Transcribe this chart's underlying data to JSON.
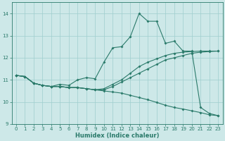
{
  "xlabel": "Humidex (Indice chaleur)",
  "bg_color": "#cde8e8",
  "grid_color": "#9ecece",
  "line_color": "#2a7a6a",
  "xlim": [
    -0.5,
    23.5
  ],
  "ylim": [
    9,
    14.5
  ],
  "yticks": [
    9,
    10,
    11,
    12,
    13,
    14
  ],
  "xticks": [
    0,
    1,
    2,
    3,
    4,
    5,
    6,
    7,
    8,
    9,
    10,
    11,
    12,
    13,
    14,
    15,
    16,
    17,
    18,
    19,
    20,
    21,
    22,
    23
  ],
  "s1_x": [
    0,
    1,
    2,
    3,
    4,
    5,
    6,
    7,
    8,
    9,
    10,
    11,
    12,
    13,
    14,
    15,
    16,
    17,
    18,
    19,
    20,
    21,
    22,
    23
  ],
  "s1_y": [
    11.2,
    11.15,
    10.85,
    10.75,
    10.7,
    10.7,
    10.65,
    10.65,
    10.6,
    10.55,
    10.5,
    10.45,
    10.4,
    10.3,
    10.2,
    10.1,
    9.98,
    9.85,
    9.75,
    9.68,
    9.6,
    9.52,
    9.42,
    9.38
  ],
  "s2_x": [
    0,
    1,
    2,
    3,
    4,
    5,
    6,
    7,
    8,
    9,
    10,
    11,
    12,
    13,
    14,
    15,
    16,
    17,
    18,
    19,
    20,
    21,
    22,
    23
  ],
  "s2_y": [
    11.2,
    11.15,
    10.85,
    10.75,
    10.7,
    10.7,
    10.65,
    10.65,
    10.6,
    10.55,
    10.55,
    10.7,
    10.9,
    11.1,
    11.3,
    11.5,
    11.7,
    11.9,
    12.0,
    12.1,
    12.2,
    12.25,
    12.28,
    12.3
  ],
  "s3_x": [
    0,
    1,
    2,
    3,
    4,
    5,
    6,
    7,
    8,
    9,
    10,
    11,
    12,
    13,
    14,
    15,
    16,
    17,
    18,
    19,
    20,
    21,
    22,
    23
  ],
  "s3_y": [
    11.2,
    11.15,
    10.85,
    10.75,
    10.7,
    10.7,
    10.65,
    10.65,
    10.6,
    10.55,
    10.6,
    10.8,
    11.0,
    11.3,
    11.6,
    11.8,
    11.95,
    12.1,
    12.2,
    12.25,
    12.28,
    12.3,
    12.3,
    12.3
  ],
  "s4_x": [
    0,
    1,
    2,
    3,
    4,
    5,
    6,
    7,
    8,
    9,
    10,
    11,
    12,
    13,
    14,
    15,
    16,
    17,
    18,
    19,
    20,
    21,
    22,
    23
  ],
  "s4_y": [
    11.2,
    11.15,
    10.85,
    10.75,
    10.7,
    10.8,
    10.75,
    11.0,
    11.1,
    11.05,
    11.8,
    12.45,
    12.5,
    12.95,
    14.0,
    13.65,
    13.65,
    12.65,
    12.75,
    12.3,
    12.3,
    9.75,
    9.48,
    9.38
  ]
}
